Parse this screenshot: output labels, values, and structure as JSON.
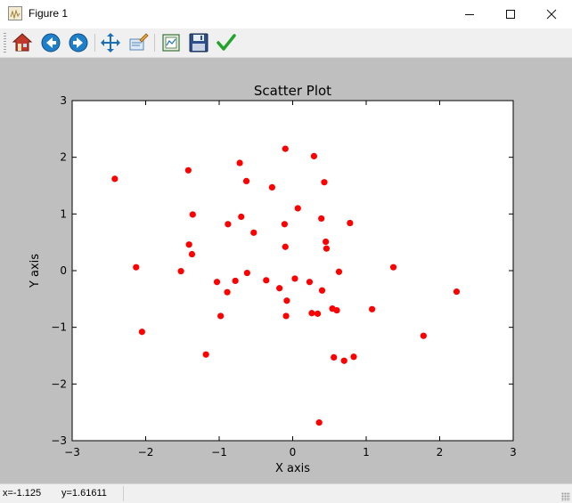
{
  "window": {
    "title": "Figure 1"
  },
  "toolbar": {
    "buttons": [
      {
        "name": "home-button",
        "icon": "home-icon"
      },
      {
        "name": "back-button",
        "icon": "back-arrow-icon"
      },
      {
        "name": "forward-button",
        "icon": "forward-arrow-icon"
      },
      {
        "name": "pan-button",
        "icon": "pan-arrows-icon"
      },
      {
        "name": "zoom-button",
        "icon": "zoom-rect-icon"
      },
      {
        "name": "subplots-button",
        "icon": "subplots-icon"
      },
      {
        "name": "save-button",
        "icon": "floppy-disk-icon"
      },
      {
        "name": "edit-button",
        "icon": "checkmark-icon"
      }
    ]
  },
  "status": {
    "x_text": "x=-1.125",
    "y_text": "y=1.61611"
  },
  "colors": {
    "marker": "#ff0000",
    "axes_bg": "#ffffff",
    "figure_bg": "#bfbfbf"
  },
  "chart_data": {
    "type": "scatter",
    "title": "Scatter Plot",
    "xlabel": "X axis",
    "ylabel": "Y axis",
    "xlim": [
      -3,
      3
    ],
    "ylim": [
      -3,
      3
    ],
    "xticks": [
      -3,
      -2,
      -1,
      0,
      1,
      2,
      3
    ],
    "yticks": [
      -3,
      -2,
      -1,
      0,
      1,
      2,
      3
    ],
    "xtick_labels": [
      "−3",
      "−2",
      "−1",
      "0",
      "1",
      "2",
      "3"
    ],
    "ytick_labels": [
      "−3",
      "−2",
      "−1",
      "0",
      "1",
      "2",
      "3"
    ],
    "grid": false,
    "legend": null,
    "points": [
      [
        -2.42,
        1.62
      ],
      [
        -2.13,
        0.06
      ],
      [
        -2.05,
        -1.08
      ],
      [
        -1.52,
        -0.01
      ],
      [
        -1.42,
        1.77
      ],
      [
        -1.41,
        0.46
      ],
      [
        -1.37,
        0.29
      ],
      [
        -1.36,
        0.99
      ],
      [
        -1.18,
        -1.48
      ],
      [
        -1.03,
        -0.2
      ],
      [
        -0.98,
        -0.8
      ],
      [
        -0.89,
        -0.38
      ],
      [
        -0.88,
        0.82
      ],
      [
        -0.78,
        -0.18
      ],
      [
        -0.72,
        1.9
      ],
      [
        -0.7,
        0.95
      ],
      [
        -0.63,
        1.58
      ],
      [
        -0.62,
        -0.04
      ],
      [
        -0.53,
        0.67
      ],
      [
        -0.36,
        -0.17
      ],
      [
        -0.28,
        1.47
      ],
      [
        -0.18,
        -0.31
      ],
      [
        -0.11,
        0.82
      ],
      [
        -0.1,
        2.15
      ],
      [
        -0.1,
        0.42
      ],
      [
        -0.09,
        -0.8
      ],
      [
        -0.08,
        -0.53
      ],
      [
        0.03,
        -0.14
      ],
      [
        0.07,
        1.1
      ],
      [
        0.23,
        -0.2
      ],
      [
        0.26,
        -0.75
      ],
      [
        0.29,
        2.02
      ],
      [
        0.34,
        -0.76
      ],
      [
        0.36,
        -2.68
      ],
      [
        0.39,
        0.92
      ],
      [
        0.4,
        -0.35
      ],
      [
        0.43,
        1.56
      ],
      [
        0.45,
        0.51
      ],
      [
        0.46,
        0.39
      ],
      [
        0.54,
        -0.67
      ],
      [
        0.56,
        -1.53
      ],
      [
        0.6,
        -0.7
      ],
      [
        0.63,
        -0.02
      ],
      [
        0.7,
        -1.59
      ],
      [
        0.78,
        0.84
      ],
      [
        0.83,
        -1.52
      ],
      [
        1.08,
        -0.68
      ],
      [
        1.37,
        0.06
      ],
      [
        1.78,
        -1.15
      ],
      [
        2.23,
        -0.37
      ]
    ]
  }
}
